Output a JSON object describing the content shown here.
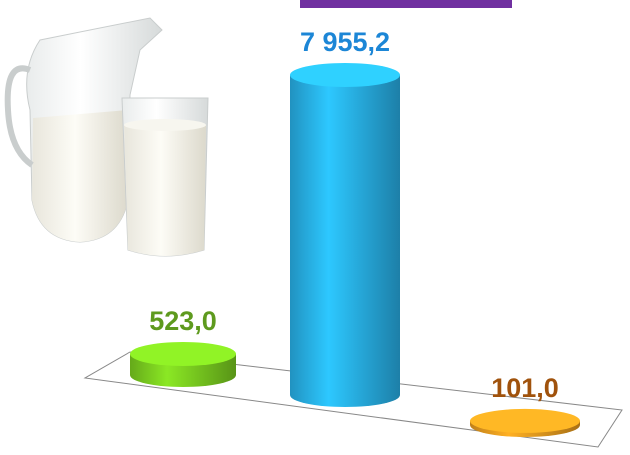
{
  "chart_data": {
    "type": "cylinder",
    "values": [
      523.0,
      7955.2,
      101.0
    ],
    "value_labels": [
      "523,0",
      "7 955,2",
      "101,0"
    ],
    "colors": [
      "#7ed321",
      "#29b6f0",
      "#f0a020"
    ],
    "label_colors": [
      "#5e9a1e",
      "#1c86d6",
      "#a0520c"
    ]
  }
}
